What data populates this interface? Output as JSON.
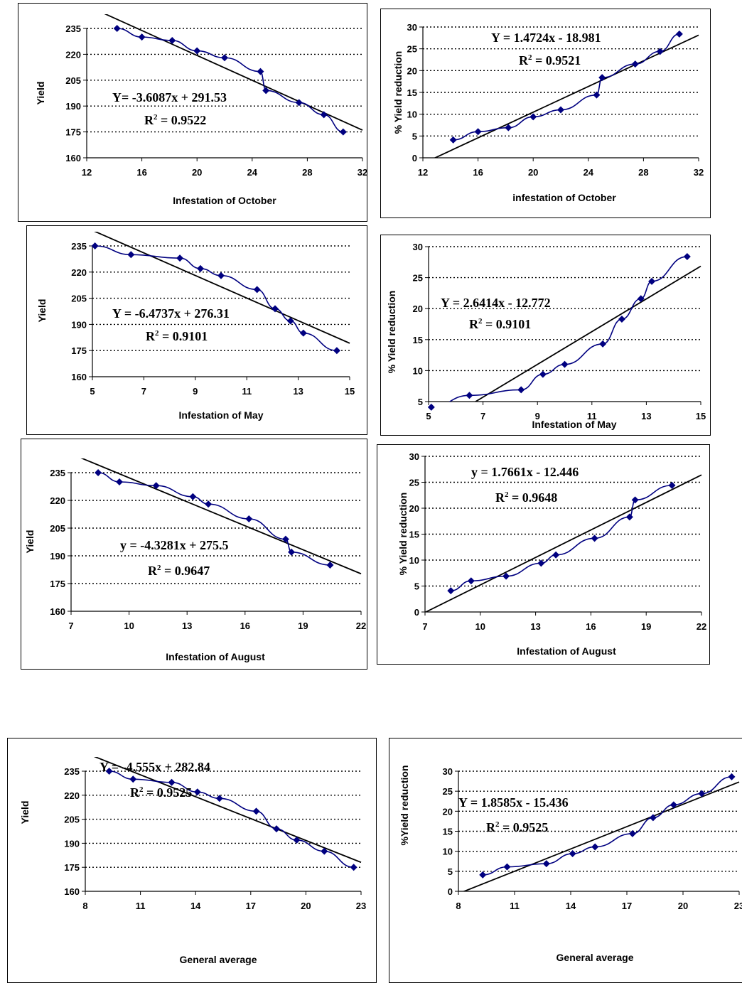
{
  "chart_data": [
    {
      "type": "scatter",
      "xlabel": "Infestation of October",
      "ylabel": "Yield",
      "xlim": [
        12,
        32
      ],
      "ylim": [
        160,
        245
      ],
      "xticks": [
        "12",
        "16",
        "20",
        "24",
        "28",
        "32"
      ],
      "yticks": [
        "160",
        "175",
        "190",
        "205",
        "220",
        "235"
      ],
      "grid": "horizontal dotted",
      "series": [
        {
          "x": [
            14.2,
            16,
            18.2,
            20,
            22,
            24.6,
            25,
            27.4,
            29.2,
            30.6
          ],
          "y": [
            235,
            230,
            228,
            222,
            218,
            210,
            199,
            192,
            185,
            175
          ]
        }
      ],
      "trendline": {
        "slope": -3.6087,
        "intercept": 291.53
      },
      "equation": "Y= -3.6087x + 291.53",
      "r2_label": "R",
      "r2_value": " = 0.9522",
      "colors": {
        "series": "#000080",
        "trend": "#000000"
      }
    },
    {
      "type": "scatter",
      "xlabel": "infestation of October",
      "ylabel": "% Yield reduction",
      "xlim": [
        12,
        32
      ],
      "ylim": [
        0,
        30
      ],
      "xticks": [
        "12",
        "16",
        "20",
        "24",
        "28",
        "32"
      ],
      "yticks": [
        "0",
        "5",
        "10",
        "15",
        "20",
        "25",
        "30"
      ],
      "grid": "horizontal dotted",
      "series": [
        {
          "x": [
            14.2,
            16,
            18.2,
            20,
            22,
            24.6,
            25,
            27.4,
            29.2,
            30.6
          ],
          "y": [
            4.1,
            6,
            6.9,
            9.4,
            11,
            14.4,
            18.4,
            21.5,
            24.4,
            28.4
          ]
        }
      ],
      "trendline": {
        "slope": 1.4724,
        "intercept": -18.981
      },
      "equation": "Y = 1.4724x - 18.981",
      "r2_label": "R",
      "r2_value": " = 0.9521",
      "colors": {
        "series": "#000080",
        "trend": "#000000"
      }
    },
    {
      "type": "scatter",
      "xlabel": "Infestation of May",
      "ylabel": "Yield",
      "xlim": [
        5,
        15
      ],
      "ylim": [
        160,
        245
      ],
      "xticks": [
        "5",
        "7",
        "9",
        "11",
        "13",
        "15"
      ],
      "yticks": [
        "160",
        "175",
        "190",
        "205",
        "220",
        "235"
      ],
      "grid": "horizontal dotted",
      "series": [
        {
          "x": [
            5.1,
            6.5,
            8.4,
            9.2,
            10,
            11.4,
            12.1,
            12.7,
            13.2,
            14.5
          ],
          "y": [
            235,
            230,
            228,
            222,
            218,
            210,
            199,
            192,
            185,
            175
          ]
        }
      ],
      "trendline": {
        "slope": -6.4737,
        "intercept": 276.31
      },
      "equation": "Y = -6.4737x + 276.31",
      "r2_label": "R",
      "r2_value": " = 0.9101",
      "colors": {
        "series": "#000080",
        "trend": "#000000"
      }
    },
    {
      "type": "scatter",
      "xlabel": "Infestation of May",
      "ylabel": "% Yield  reduction",
      "xlim": [
        5,
        15
      ],
      "ylim": [
        5,
        30
      ],
      "xticks": [
        "5",
        "7",
        "9",
        "11",
        "13",
        "15"
      ],
      "yticks": [
        "5",
        "10",
        "15",
        "20",
        "25",
        "30"
      ],
      "grid": "horizontal dotted",
      "series": [
        {
          "x": [
            5.1,
            6.5,
            8.4,
            9.2,
            10,
            11.4,
            12.1,
            12.8,
            13.2,
            14.5
          ],
          "y": [
            4.1,
            6,
            6.9,
            9.4,
            11,
            14.3,
            18.3,
            21.6,
            24.4,
            28.4
          ]
        }
      ],
      "trendline": {
        "slope": 2.6414,
        "intercept": -12.772
      },
      "equation": "Y = 2.6414x - 12.772",
      "r2_label": "R",
      "r2_value": " = 0.9101",
      "colors": {
        "series": "#000080",
        "trend": "#000000"
      }
    },
    {
      "type": "scatter",
      "xlabel": "Infestation of August",
      "ylabel": "Yield",
      "xlim": [
        7,
        22
      ],
      "ylim": [
        160,
        240
      ],
      "xticks": [
        "7",
        "10",
        "13",
        "16",
        "19",
        "22"
      ],
      "yticks": [
        "160",
        "175",
        "190",
        "205",
        "220",
        "235"
      ],
      "grid": "horizontal dotted",
      "series": [
        {
          "x": [
            8.4,
            9.5,
            11.4,
            13.3,
            14.1,
            16.2,
            18.1,
            18.4,
            20.4
          ],
          "y": [
            235,
            230,
            228,
            222,
            218,
            210,
            199,
            192,
            185
          ]
        }
      ],
      "trendline": {
        "slope": -4.3281,
        "intercept": 275.5
      },
      "equation": "y = -4.3281x + 275.5",
      "r2_label": "R",
      "r2_value": " = 0.9647",
      "colors": {
        "series": "#000080",
        "trend": "#000000"
      }
    },
    {
      "type": "scatter",
      "xlabel": "Infestation of August",
      "ylabel": "% Yield reduction",
      "xlim": [
        7,
        22
      ],
      "ylim": [
        0,
        30
      ],
      "xticks": [
        "7",
        "10",
        "13",
        "16",
        "19",
        "22"
      ],
      "yticks": [
        "0",
        "5",
        "10",
        "15",
        "20",
        "25",
        "30"
      ],
      "grid": "horizontal dotted",
      "series": [
        {
          "x": [
            8.4,
            9.5,
            11.4,
            13.3,
            14.1,
            16.2,
            18.1,
            18.4,
            20.4
          ],
          "y": [
            4.1,
            6,
            6.9,
            9.4,
            11,
            14.2,
            18.3,
            21.6,
            24.4
          ]
        }
      ],
      "trendline": {
        "slope": 1.7661,
        "intercept": -12.446
      },
      "equation": "y = 1.7661x - 12.446",
      "r2_label": "R",
      "r2_value": " = 0.9648",
      "colors": {
        "series": "#000080",
        "trend": "#000000"
      }
    },
    {
      "type": "scatter",
      "xlabel": "General average",
      "ylabel": "Yield",
      "xlim": [
        8,
        23
      ],
      "ylim": [
        160,
        240
      ],
      "xticks": [
        "8",
        "11",
        "14",
        "17",
        "20",
        "23"
      ],
      "yticks": [
        "160",
        "175",
        "190",
        "205",
        "220",
        "235"
      ],
      "grid": "horizontal dotted",
      "series": [
        {
          "x": [
            9.3,
            10.6,
            12.7,
            14.1,
            15.3,
            17.3,
            18.4,
            19.5,
            21,
            22.6
          ],
          "y": [
            235,
            230,
            228,
            222,
            218,
            210,
            199,
            192,
            185,
            175
          ]
        }
      ],
      "trendline": {
        "slope": -4.555,
        "intercept": 282.84
      },
      "equation": "Y = -4.555x + 282.84",
      "r2_label": "R",
      "r2_value": " = 0.9525",
      "colors": {
        "series": "#000080",
        "trend": "#000000"
      }
    },
    {
      "type": "scatter",
      "xlabel": "General average",
      "ylabel": "%Yield reduction",
      "xlim": [
        8,
        23
      ],
      "ylim": [
        0,
        30
      ],
      "xticks": [
        "8",
        "11",
        "14",
        "17",
        "20",
        "23"
      ],
      "yticks": [
        "0",
        "5",
        "10",
        "15",
        "20",
        "25",
        "30"
      ],
      "grid": "horizontal dotted",
      "series": [
        {
          "x": [
            9.3,
            10.6,
            12.7,
            14.1,
            15.3,
            17.3,
            18.4,
            19.5,
            21,
            22.6
          ],
          "y": [
            4.1,
            6.1,
            6.9,
            9.4,
            11.1,
            14.4,
            18.4,
            21.6,
            24.4,
            28.6
          ]
        }
      ],
      "trendline": {
        "slope": 1.8585,
        "intercept": -15.436
      },
      "equation": "Y = 1.8585x - 15.436",
      "r2_label": "R",
      "r2_value": " = 0.9525",
      "colors": {
        "series": "#000080",
        "trend": "#000000"
      }
    }
  ]
}
